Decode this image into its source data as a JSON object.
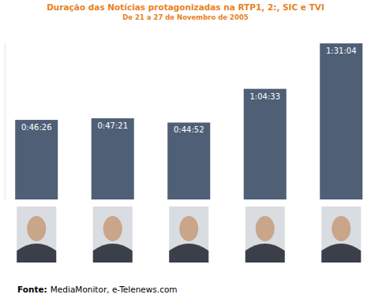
{
  "chart_data": {
    "type": "bar",
    "title": "Duração das Notícias protagonizadas na RTP1, 2:, SIC e TVI",
    "subtitle": "De 21 a 27 de Novembro de 2005",
    "categories": [
      null,
      null,
      null,
      null,
      null
    ],
    "values": [
      2786,
      2841,
      2692,
      3873,
      5464
    ],
    "value_labels": [
      "0:46:26",
      "0:47:21",
      "0:44:52",
      "1:04:33",
      "1:31:04"
    ],
    "color": "#4e5f76",
    "ylim": [
      0,
      5520
    ],
    "data_labels": true,
    "tick_labels": false,
    "source_label": "Fonte:",
    "source": "MediaMonitor, e-Telenews.com"
  }
}
